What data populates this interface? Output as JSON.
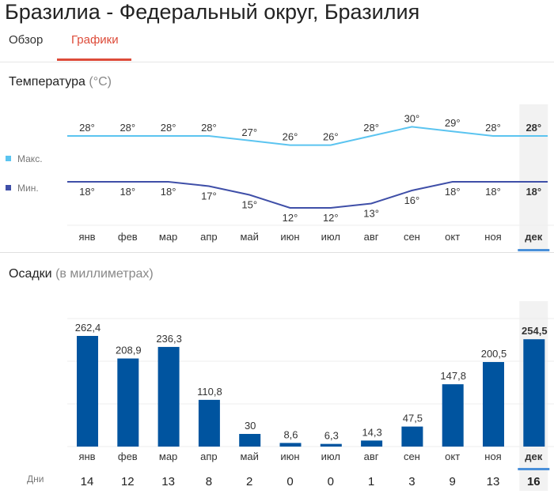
{
  "header": {
    "title": "Бразилиа - Федеральный округ, Бразилия"
  },
  "tabs": [
    {
      "label": "Обзор",
      "active": false
    },
    {
      "label": "Графики",
      "active": true
    }
  ],
  "accent_color": "#dd4b39",
  "temperature": {
    "title": "Температура",
    "unit": "(°C)",
    "legend_max": "Макс.",
    "legend_min": "Мин.",
    "max_color": "#5bc4f0",
    "min_color": "#3f4fa8"
  },
  "precipitation": {
    "title": "Осадки",
    "unit": "(в миллиметрах)",
    "days_label": "Дни",
    "bar_color": "#00549f"
  },
  "selected_month_index": 11,
  "chart_data": [
    {
      "type": "line",
      "categories": [
        "янв",
        "фев",
        "мар",
        "апр",
        "май",
        "июн",
        "июл",
        "авг",
        "сен",
        "окт",
        "ноя",
        "дек"
      ],
      "series": [
        {
          "name": "Макс.",
          "values": [
            28,
            28,
            28,
            28,
            27,
            26,
            26,
            28,
            30,
            29,
            28,
            28
          ],
          "labels": [
            "28°",
            "28°",
            "28°",
            "28°",
            "27°",
            "26°",
            "26°",
            "28°",
            "30°",
            "29°",
            "28°",
            "28°"
          ]
        },
        {
          "name": "Мин.",
          "values": [
            18,
            18,
            18,
            17,
            15,
            12,
            12,
            13,
            16,
            18,
            18,
            18
          ],
          "labels": [
            "18°",
            "18°",
            "18°",
            "17°",
            "15°",
            "12°",
            "12°",
            "13°",
            "16°",
            "18°",
            "18°",
            "18°"
          ]
        }
      ]
    },
    {
      "type": "bar",
      "categories": [
        "янв",
        "фев",
        "мар",
        "апр",
        "май",
        "июн",
        "июл",
        "авг",
        "сен",
        "окт",
        "ноя",
        "дек"
      ],
      "values": [
        262.4,
        208.9,
        236.3,
        110.8,
        30,
        8.6,
        6.3,
        14.3,
        47.5,
        147.8,
        200.5,
        254.5
      ],
      "value_labels": [
        "262,4",
        "208,9",
        "236,3",
        "110,8",
        "30",
        "8,6",
        "6,3",
        "14,3",
        "47,5",
        "147,8",
        "200,5",
        "254,5"
      ],
      "days": [
        "14",
        "12",
        "13",
        "8",
        "2",
        "0",
        "0",
        "1",
        "3",
        "9",
        "13",
        "16"
      ]
    }
  ]
}
